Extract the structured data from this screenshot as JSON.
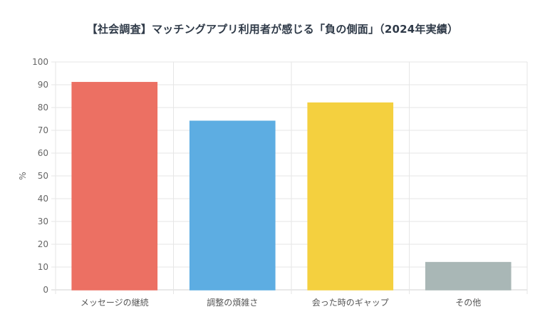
{
  "chart_data": {
    "type": "bar",
    "title": "【社会調査】マッチングアプリ利用者が感じる「負の側面」（2024年実績）",
    "ylabel": "%",
    "xlabel": "",
    "ylim": [
      0,
      100
    ],
    "yticks": [
      0,
      10,
      20,
      30,
      40,
      50,
      60,
      70,
      80,
      90,
      100
    ],
    "categories": [
      "メッセージの継続",
      "調整の煩雑さ",
      "会った時のギャップ",
      "その他"
    ],
    "values": [
      91,
      74,
      82,
      12
    ],
    "colors": [
      "#ec7063",
      "#5dade2",
      "#f4d03f",
      "#a9b7b6"
    ],
    "grid": true,
    "legend": "none"
  }
}
